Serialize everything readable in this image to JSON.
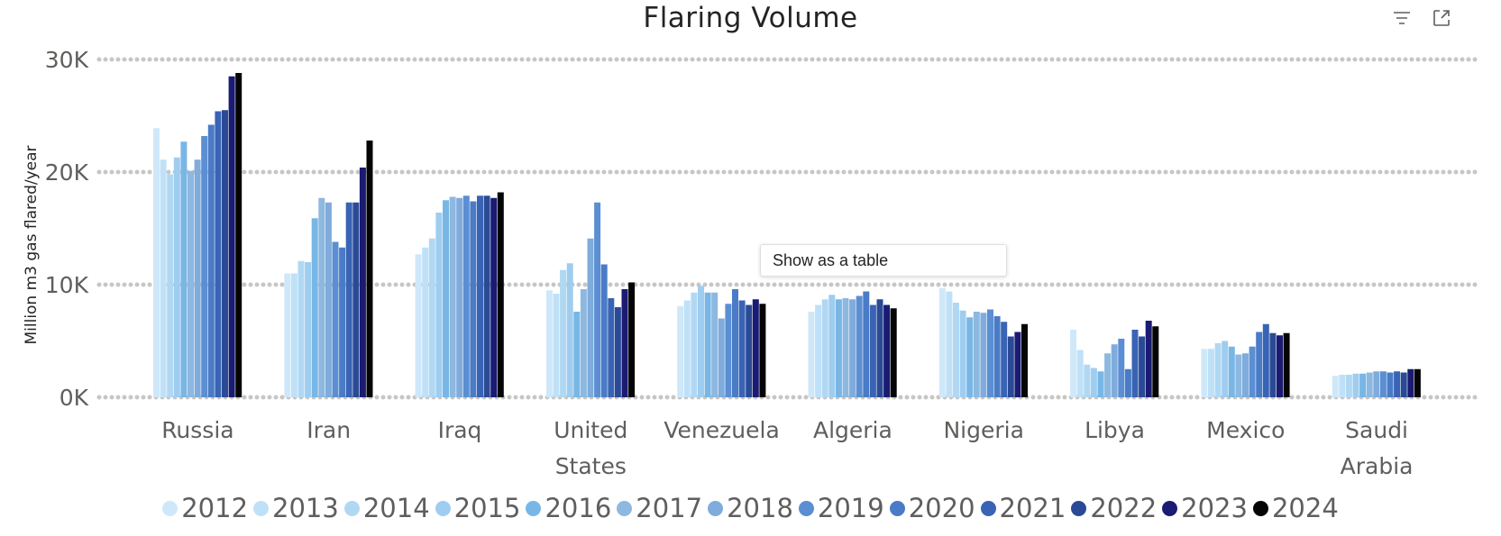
{
  "chart_data": {
    "type": "bar",
    "title": "Flaring Volume",
    "xlabel": "",
    "ylabel": "Million m3 gas flared/year",
    "ylim": [
      0,
      30000
    ],
    "yticks": [
      {
        "value": 0,
        "label": "0K"
      },
      {
        "value": 10000,
        "label": "10K"
      },
      {
        "value": 20000,
        "label": "20K"
      },
      {
        "value": 30000,
        "label": "30K"
      }
    ],
    "grid": true,
    "legend_position": "bottom",
    "categories": [
      "Russia",
      "Iran",
      "Iraq",
      "United States",
      "Venezuela",
      "Algeria",
      "Nigeria",
      "Libya",
      "Mexico",
      "Saudi Arabia"
    ],
    "series": [
      {
        "name": "2012",
        "color": "#cfe8f9",
        "values": [
          23900,
          11000,
          12700,
          9500,
          8100,
          7600,
          9700,
          6000,
          4300,
          1900
        ]
      },
      {
        "name": "2013",
        "color": "#bfe1f8",
        "values": [
          21100,
          11000,
          13300,
          9200,
          8600,
          8200,
          9400,
          4200,
          4300,
          2000
        ]
      },
      {
        "name": "2014",
        "color": "#b1d8f3",
        "values": [
          19800,
          12100,
          14100,
          11300,
          9300,
          8700,
          8400,
          2900,
          4800,
          2000
        ]
      },
      {
        "name": "2015",
        "color": "#9fcdf0",
        "values": [
          21300,
          12000,
          16400,
          11900,
          9900,
          9100,
          7700,
          2600,
          5000,
          2100
        ]
      },
      {
        "name": "2016",
        "color": "#78b7e5",
        "values": [
          22700,
          15900,
          17500,
          7600,
          9300,
          8700,
          7100,
          2300,
          4500,
          2100
        ]
      },
      {
        "name": "2017",
        "color": "#8db8e0",
        "values": [
          20100,
          17700,
          17800,
          9600,
          9300,
          8800,
          7600,
          3900,
          3800,
          2200
        ]
      },
      {
        "name": "2018",
        "color": "#7facdc",
        "values": [
          21100,
          17300,
          17700,
          14100,
          7000,
          8700,
          7500,
          4700,
          3900,
          2300
        ]
      },
      {
        "name": "2019",
        "color": "#5b8ed2",
        "values": [
          23200,
          13800,
          17900,
          17300,
          8300,
          9000,
          7800,
          5200,
          4500,
          2300
        ]
      },
      {
        "name": "2020",
        "color": "#4a7bc6",
        "values": [
          24200,
          13300,
          17400,
          11800,
          9600,
          9400,
          7200,
          2500,
          5800,
          2200
        ]
      },
      {
        "name": "2021",
        "color": "#3963b4",
        "values": [
          25400,
          17300,
          17900,
          8800,
          8600,
          8200,
          6700,
          6000,
          6500,
          2300
        ]
      },
      {
        "name": "2022",
        "color": "#2b4a96",
        "values": [
          25500,
          17300,
          17900,
          8000,
          8200,
          8700,
          5400,
          5400,
          5700,
          2200
        ]
      },
      {
        "name": "2023",
        "color": "#1a1b72",
        "values": [
          28500,
          20400,
          17700,
          9600,
          8700,
          8200,
          5800,
          6800,
          5500,
          2500
        ]
      },
      {
        "name": "2024",
        "color": "#050505",
        "values": [
          28800,
          22800,
          18200,
          10200,
          8300,
          7900,
          6500,
          6300,
          5700,
          2500
        ]
      }
    ]
  },
  "tooltip": {
    "text": "Show as a table"
  },
  "icons": {
    "filter": "filter-icon",
    "focus": "focus-mode-icon"
  }
}
